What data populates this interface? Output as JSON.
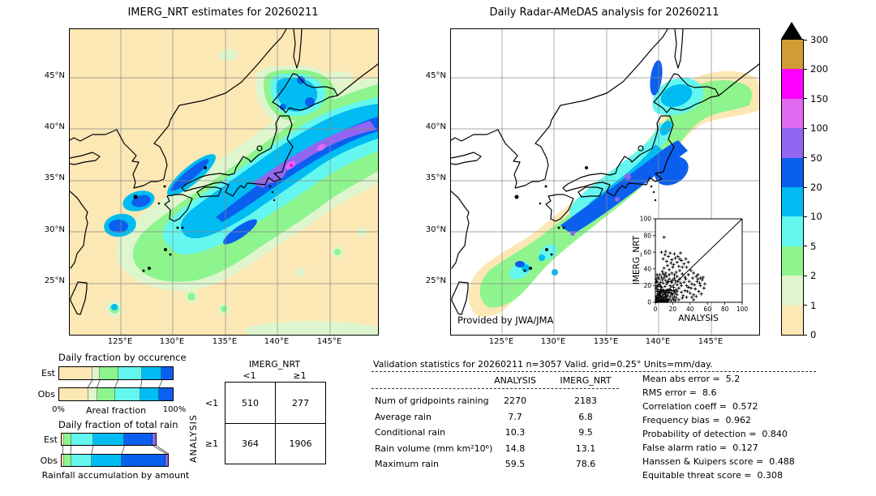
{
  "left_map": {
    "title": "IMERG_NRT estimates for 20260211"
  },
  "right_map": {
    "title": "Daily Radar-AMeDAS analysis for 20260211",
    "credit": "Provided by JWA/JMA"
  },
  "map_axes": {
    "lat_ticks": [
      "45°N",
      "40°N",
      "35°N",
      "30°N",
      "25°N"
    ],
    "lon_ticks": [
      "125°E",
      "130°E",
      "135°E",
      "140°E",
      "145°E"
    ]
  },
  "colorbar": {
    "tick_labels": [
      "300",
      "200",
      "150",
      "100",
      "50",
      "20",
      "10",
      "5",
      "2",
      "1",
      "0"
    ],
    "cell_colors_top_down": [
      "#d19c33",
      "#ff00ff",
      "#e06af0",
      "#9166f0",
      "#0b5fee",
      "#00bcf2",
      "#63f7ef",
      "#8ef58e",
      "#dff5cd",
      "#fce8b4"
    ],
    "overflow_color": "#000000"
  },
  "chart_data": [
    {
      "type": "stacked-bar",
      "title": "Daily fraction by occurence",
      "xlabel": "Areal fraction",
      "x0_label": "0%",
      "x1_label": "100%",
      "rows": [
        {
          "name": "Est",
          "values": [
            29.5,
            6.5,
            16.0,
            20.5,
            17.5,
            10.0
          ]
        },
        {
          "name": "Obs",
          "values": [
            25.5,
            8.0,
            15.5,
            22.5,
            16.0,
            12.5
          ]
        }
      ],
      "colors": [
        "#fce8b4",
        "#dff5cd",
        "#8ef58e",
        "#63f7ef",
        "#00bcf2",
        "#0b5fee"
      ]
    },
    {
      "type": "stacked-bar",
      "title": "Daily fraction of total rain",
      "xlabel": "Rainfall accumulation by amount",
      "rows": [
        {
          "name": "Est",
          "values": [
            2.0,
            7.5,
            20.5,
            29.0,
            26.5,
            3.0
          ]
        },
        {
          "name": "Obs",
          "values": [
            2.0,
            7.0,
            19.5,
            28.0,
            41.5,
            2.0
          ]
        }
      ],
      "colors": [
        "#fce8b4",
        "#8ef58e",
        "#63f7ef",
        "#00bcf2",
        "#0b5fee",
        "#9166f0"
      ]
    },
    {
      "type": "scatter",
      "xlabel": "ANALYSIS",
      "ylabel": "IMERG_NRT",
      "xlim": [
        0,
        100
      ],
      "ylim": [
        0,
        100
      ],
      "ticks": [
        0,
        20,
        40,
        60,
        80,
        100
      ],
      "diagonal_line": true,
      "marker": "+",
      "points": [
        [
          1,
          1
        ],
        [
          2,
          1
        ],
        [
          1,
          3
        ],
        [
          3,
          2
        ],
        [
          2,
          4
        ],
        [
          4,
          1
        ],
        [
          5,
          2
        ],
        [
          3,
          5
        ],
        [
          6,
          3
        ],
        [
          4,
          6
        ],
        [
          7,
          1
        ],
        [
          8,
          2
        ],
        [
          5,
          7
        ],
        [
          9,
          3
        ],
        [
          6,
          8
        ],
        [
          10,
          1
        ],
        [
          7,
          4
        ],
        [
          11,
          2
        ],
        [
          8,
          6
        ],
        [
          12,
          4
        ],
        [
          9,
          9
        ],
        [
          13,
          1
        ],
        [
          10,
          5
        ],
        [
          14,
          3
        ],
        [
          11,
          7
        ],
        [
          15,
          2
        ],
        [
          12,
          9
        ],
        [
          13,
          6
        ],
        [
          14,
          8
        ],
        [
          15,
          11
        ],
        [
          2,
          8
        ],
        [
          3,
          10
        ],
        [
          4,
          12
        ],
        [
          1,
          6
        ],
        [
          5,
          13
        ],
        [
          6,
          11
        ],
        [
          7,
          14
        ],
        [
          8,
          12
        ],
        [
          9,
          15
        ],
        [
          2,
          13
        ],
        [
          10,
          13
        ],
        [
          11,
          11
        ],
        [
          12,
          14
        ],
        [
          3,
          15
        ],
        [
          13,
          12
        ],
        [
          4,
          9
        ],
        [
          14,
          15
        ],
        [
          5,
          10
        ],
        [
          15,
          14
        ],
        [
          6,
          15
        ],
        [
          16,
          4
        ],
        [
          17,
          7
        ],
        [
          18,
          2
        ],
        [
          19,
          9
        ],
        [
          20,
          5
        ],
        [
          16,
          12
        ],
        [
          17,
          15
        ],
        [
          18,
          11
        ],
        [
          19,
          14
        ],
        [
          20,
          10
        ],
        [
          21,
          3
        ],
        [
          22,
          7
        ],
        [
          23,
          11
        ],
        [
          24,
          5
        ],
        [
          25,
          9
        ],
        [
          21,
          14
        ],
        [
          22,
          13
        ],
        [
          23,
          2
        ],
        [
          24,
          15
        ],
        [
          25,
          13
        ],
        [
          1,
          17
        ],
        [
          3,
          19
        ],
        [
          5,
          21
        ],
        [
          7,
          18
        ],
        [
          9,
          23
        ],
        [
          11,
          19
        ],
        [
          13,
          22
        ],
        [
          15,
          25
        ],
        [
          17,
          20
        ],
        [
          19,
          24
        ],
        [
          21,
          18
        ],
        [
          23,
          26
        ],
        [
          25,
          21
        ],
        [
          27,
          17
        ],
        [
          29,
          23
        ],
        [
          2,
          25
        ],
        [
          4,
          28
        ],
        [
          6,
          24
        ],
        [
          8,
          27
        ],
        [
          10,
          29
        ],
        [
          12,
          26
        ],
        [
          14,
          24
        ],
        [
          16,
          28
        ],
        [
          18,
          25
        ],
        [
          20,
          27
        ],
        [
          22,
          29
        ],
        [
          26,
          25
        ],
        [
          28,
          28
        ],
        [
          30,
          20
        ],
        [
          30,
          12
        ],
        [
          5,
          33
        ],
        [
          8,
          37
        ],
        [
          10,
          41
        ],
        [
          12,
          35
        ],
        [
          14,
          44
        ],
        [
          16,
          39
        ],
        [
          18,
          47
        ],
        [
          20,
          42
        ],
        [
          9,
          52
        ],
        [
          11,
          57
        ],
        [
          13,
          49
        ],
        [
          15,
          55
        ],
        [
          17,
          59
        ],
        [
          19,
          51
        ],
        [
          21,
          45
        ],
        [
          23,
          53
        ],
        [
          25,
          48
        ],
        [
          27,
          43
        ],
        [
          7,
          60
        ],
        [
          12,
          61
        ],
        [
          22,
          58
        ],
        [
          26,
          55
        ],
        [
          30,
          50
        ],
        [
          33,
          46
        ],
        [
          36,
          42
        ],
        [
          28,
          38
        ],
        [
          31,
          34
        ],
        [
          34,
          30
        ],
        [
          24,
          36
        ],
        [
          29,
          59
        ],
        [
          32,
          8
        ],
        [
          34,
          14
        ],
        [
          36,
          6
        ],
        [
          38,
          18
        ],
        [
          40,
          11
        ],
        [
          42,
          22
        ],
        [
          44,
          9
        ],
        [
          46,
          16
        ],
        [
          48,
          25
        ],
        [
          50,
          13
        ],
        [
          52,
          20
        ],
        [
          54,
          27
        ],
        [
          56,
          17
        ],
        [
          33,
          24
        ],
        [
          35,
          28
        ],
        [
          37,
          13
        ],
        [
          39,
          25
        ],
        [
          41,
          17
        ],
        [
          43,
          29
        ],
        [
          45,
          21
        ],
        [
          47,
          7
        ],
        [
          49,
          28
        ],
        [
          51,
          23
        ],
        [
          53,
          10
        ],
        [
          55,
          30
        ],
        [
          57,
          22
        ],
        [
          38,
          33
        ],
        [
          41,
          38
        ],
        [
          44,
          35
        ],
        [
          47,
          31
        ],
        [
          10,
          78
        ],
        [
          35,
          52
        ],
        [
          38,
          48
        ],
        [
          31,
          42
        ],
        [
          28,
          52
        ],
        [
          49,
          33
        ],
        [
          52,
          29
        ],
        [
          44,
          3
        ],
        [
          31,
          5
        ],
        [
          27,
          3
        ],
        [
          36,
          20
        ],
        [
          42,
          6
        ],
        [
          2,
          20
        ],
        [
          4,
          22
        ],
        [
          6,
          19
        ],
        [
          1,
          24
        ],
        [
          3,
          30
        ],
        [
          2,
          33
        ],
        [
          1,
          28
        ],
        [
          16,
          33
        ],
        [
          19,
          35
        ],
        [
          22,
          33
        ],
        [
          25,
          31
        ],
        [
          13,
          31
        ],
        [
          7,
          30
        ],
        [
          9,
          34
        ],
        [
          11,
          32
        ]
      ]
    },
    {
      "type": "table",
      "name": "contingency",
      "col_group": "IMERG_NRT",
      "row_group": "ANALYSIS",
      "cols": [
        "<1",
        "≥1"
      ],
      "rows": [
        "<1",
        "≥1"
      ],
      "values": [
        [
          "510",
          "277"
        ],
        [
          "364",
          "1906"
        ]
      ]
    }
  ],
  "validation": {
    "title": "Validation statistics for 20260211  n=3057 Valid. grid=0.25° Units=mm/day.",
    "columns": [
      "ANALYSIS",
      "IMERG_NRT"
    ],
    "rows": [
      {
        "label": "Num of gridpoints raining",
        "analysis": "2270",
        "imerg": "2183"
      },
      {
        "label": "Average rain",
        "analysis": "7.7",
        "imerg": "6.8"
      },
      {
        "label": "Conditional rain",
        "analysis": "10.3",
        "imerg": "9.5"
      },
      {
        "label": "Rain volume (mm km²10⁶)",
        "analysis": "14.8",
        "imerg": "13.1"
      },
      {
        "label": "Maximum rain",
        "analysis": "59.5",
        "imerg": "78.6"
      }
    ],
    "metrics": [
      {
        "label": "Mean abs error =",
        "value": "5.2"
      },
      {
        "label": "RMS error =",
        "value": "8.6"
      },
      {
        "label": "Correlation coeff =",
        "value": "0.572"
      },
      {
        "label": "Frequency bias =",
        "value": "0.962"
      },
      {
        "label": "Probability of detection =",
        "value": "0.840"
      },
      {
        "label": "False alarm ratio =",
        "value": "0.127"
      },
      {
        "label": "Hanssen & Kuipers score =",
        "value": "0.488"
      },
      {
        "label": "Equitable threat score =",
        "value": "0.308"
      }
    ]
  }
}
